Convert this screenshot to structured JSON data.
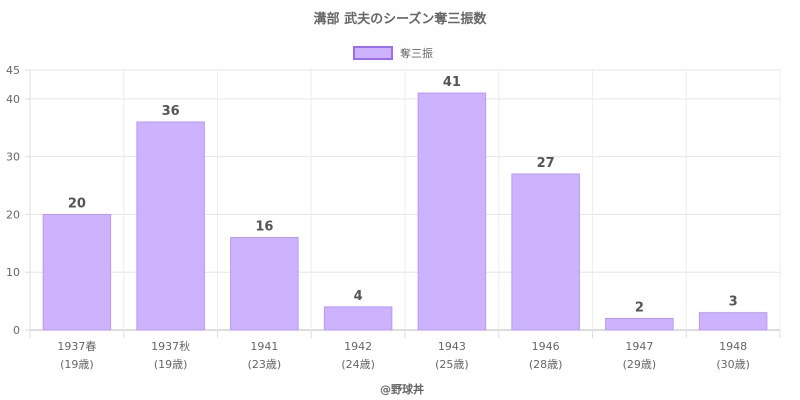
{
  "chart_data": {
    "type": "bar",
    "title": "溝部 武夫のシーズン奪三振数",
    "categories": [
      [
        "1937春",
        "(19歳)"
      ],
      [
        "1937秋",
        "(19歳)"
      ],
      [
        "1941",
        "(23歳)"
      ],
      [
        "1942",
        "(24歳)"
      ],
      [
        "1943",
        "(25歳)"
      ],
      [
        "1946",
        "(28歳)"
      ],
      [
        "1947",
        "(29歳)"
      ],
      [
        "1948",
        "(30歳)"
      ]
    ],
    "series": [
      {
        "name": "奪三振",
        "values": [
          20,
          36,
          16,
          4,
          41,
          27,
          2,
          3
        ]
      }
    ],
    "ylim": [
      0,
      45
    ],
    "yticks": [
      0,
      10,
      20,
      30,
      40,
      45
    ],
    "xlabel": "",
    "ylabel": "",
    "grid": true,
    "legend": "top-center",
    "colors": {
      "bar_fill": "#cdb3fd",
      "bar_stroke": "#b898fb",
      "legend_stroke": "#9c6cf5"
    },
    "credit": "@野球丼"
  }
}
